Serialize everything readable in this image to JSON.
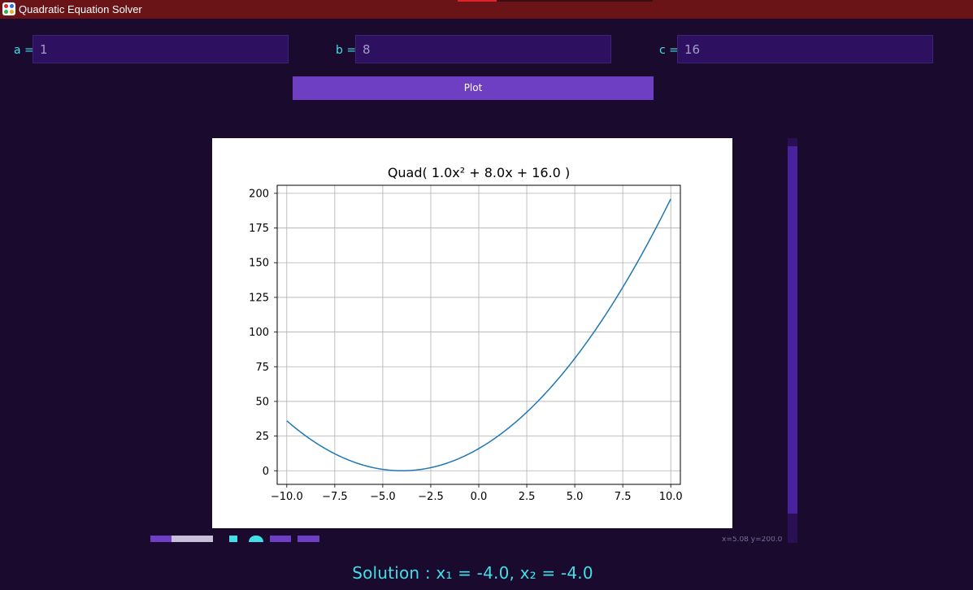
{
  "window": {
    "title": "Quadratic Equation Solver"
  },
  "inputs": [
    {
      "label": "a =",
      "value": "1"
    },
    {
      "label": "b =",
      "value": "8"
    },
    {
      "label": "c =",
      "value": "16"
    }
  ],
  "plot_button": {
    "label": "Plot"
  },
  "chart_data": {
    "type": "line",
    "title": "Quad( 1.0x² + 8.0x + 16.0 )",
    "xlabel": "",
    "ylabel": "",
    "xlim": [
      -10.5,
      10.5
    ],
    "ylim": [
      -9.8,
      205.8
    ],
    "grid": true,
    "xticks": [
      -10.0,
      -7.5,
      -5.0,
      -2.5,
      0.0,
      2.5,
      5.0,
      7.5,
      10.0
    ],
    "xtick_labels": [
      "−10.0",
      "−7.5",
      "−5.0",
      "−2.5",
      "0.0",
      "2.5",
      "5.0",
      "7.5",
      "10.0"
    ],
    "yticks": [
      0,
      25,
      50,
      75,
      100,
      125,
      150,
      175,
      200
    ],
    "ytick_labels": [
      "0",
      "25",
      "50",
      "75",
      "100",
      "125",
      "150",
      "175",
      "200"
    ],
    "series": [
      {
        "coefficients": {
          "a": 1.0,
          "b": 8.0,
          "c": 16.0
        },
        "x_range": [
          -10,
          10
        ],
        "color": "#1f77b4"
      }
    ]
  },
  "toolbar": {
    "coordinate_readout": "x=5.08 y=200.0"
  },
  "solution": {
    "text": "Solution : x₁ = -4.0, x₂ = -4.0"
  },
  "colors": {
    "background": "#1a0a2e",
    "titlebar": "#6b1417",
    "accent": "#6e3fc2",
    "input_bg": "#2d1160",
    "label_text": "#40e0e6",
    "line": "#1f77b4"
  }
}
